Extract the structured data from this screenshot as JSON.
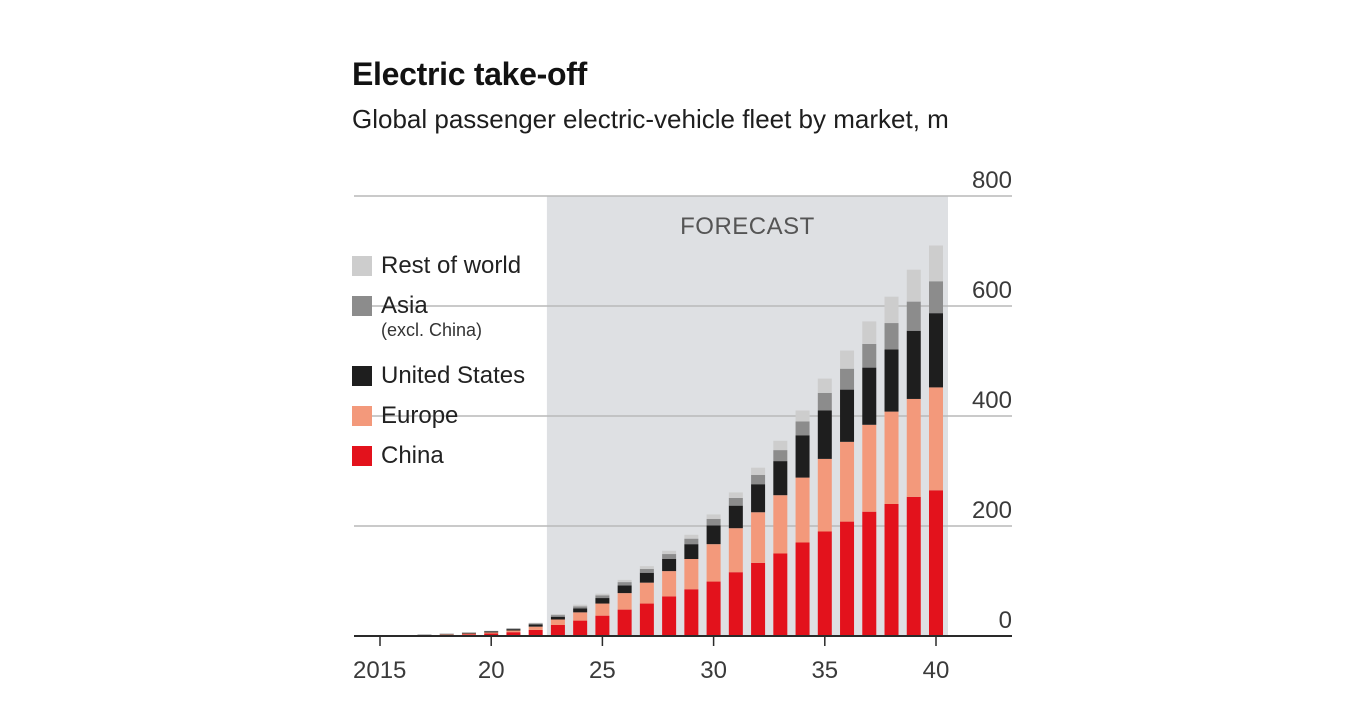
{
  "chart_data": {
    "type": "bar",
    "stacked": true,
    "title": "Electric take-off",
    "subtitle": "Global passenger electric-vehicle fleet by market, m",
    "forecast_label": "FORECAST",
    "forecast_start_year": 2023,
    "ylim": [
      0,
      800
    ],
    "y_ticks": [
      "800",
      "600",
      "400",
      "200",
      "0"
    ],
    "y_tick_values": [
      800,
      600,
      400,
      200,
      0
    ],
    "x_ticks": [
      "2015",
      "20",
      "25",
      "30",
      "35",
      "40"
    ],
    "x_tick_years": [
      2015,
      2020,
      2025,
      2030,
      2035,
      2040
    ],
    "categories": [
      2015,
      2016,
      2017,
      2018,
      2019,
      2020,
      2021,
      2022,
      2023,
      2024,
      2025,
      2026,
      2027,
      2028,
      2029,
      2030,
      2031,
      2032,
      2033,
      2034,
      2035,
      2036,
      2037,
      2038,
      2039,
      2040
    ],
    "series": [
      {
        "name": "China",
        "color": "#e3121c",
        "values": [
          0.2,
          0.5,
          1.2,
          2,
          3,
          4.5,
          7,
          11,
          20,
          28,
          37,
          48,
          59,
          72,
          85,
          99,
          116,
          133,
          150,
          170,
          190,
          208,
          226,
          240,
          253,
          265
        ]
      },
      {
        "name": "Europe",
        "color": "#f3997b",
        "values": [
          0.1,
          0.3,
          0.6,
          1,
          1.5,
          2,
          3,
          6,
          10,
          15,
          22,
          30,
          38,
          46,
          55,
          68,
          80,
          92,
          106,
          118,
          132,
          145,
          158,
          168,
          178,
          187
        ]
      },
      {
        "name": "United States",
        "color": "#1e1e1e",
        "values": [
          0.1,
          0.3,
          0.5,
          1,
          1.5,
          2,
          2.5,
          4,
          5,
          7,
          10,
          14,
          18,
          22,
          27,
          34,
          41,
          51,
          62,
          77,
          88,
          95,
          104,
          113,
          124,
          135
        ]
      },
      {
        "name": "Asia",
        "name_note": "(excl. China)",
        "color": "#8c8c8c",
        "values": [
          0,
          0,
          0,
          0.2,
          0.3,
          0.5,
          1,
          2,
          3,
          4,
          5,
          6,
          7,
          9,
          10,
          12,
          14,
          17,
          20,
          25,
          32,
          38,
          43,
          48,
          53,
          58
        ]
      },
      {
        "name": "Rest of world",
        "color": "#cdcdcd",
        "values": [
          0,
          0,
          0,
          0.2,
          0.2,
          0.5,
          1,
          1,
          2,
          3,
          3,
          4,
          5,
          6,
          7,
          8,
          10,
          13,
          17,
          20,
          26,
          33,
          41,
          48,
          58,
          65
        ]
      }
    ],
    "legend_order": [
      "Rest of world",
      "Asia",
      "United States",
      "Europe",
      "China"
    ],
    "grid": true,
    "legend_position": "left"
  }
}
